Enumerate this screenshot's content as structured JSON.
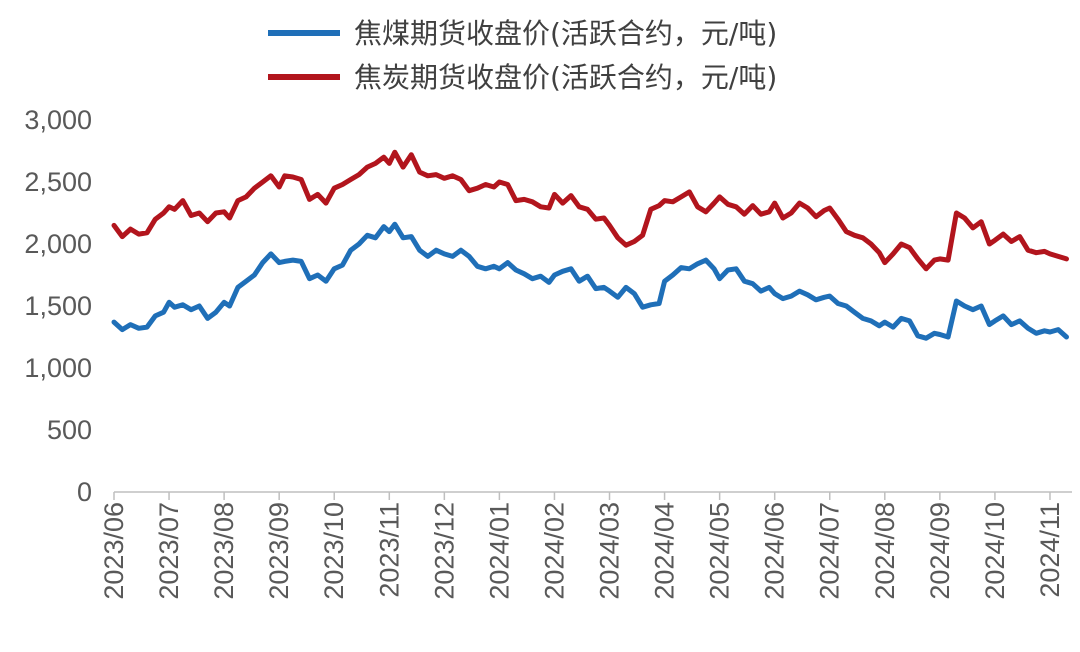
{
  "chart_data": {
    "type": "line",
    "title": "",
    "xlabel": "",
    "ylabel": "",
    "ylim": [
      0,
      3000
    ],
    "yticks": [
      0,
      500,
      1000,
      1500,
      2000,
      2500,
      3000
    ],
    "ytick_labels": [
      "0",
      "500",
      "1,000",
      "1,500",
      "2,000",
      "2,500",
      "3,000"
    ],
    "xlim": [
      0,
      17.4
    ],
    "categories": [
      "2023/06",
      "2023/07",
      "2023/08",
      "2023/09",
      "2023/10",
      "2023/11",
      "2023/12",
      "2024/01",
      "2024/02",
      "2024/03",
      "2024/04",
      "2024/05",
      "2024/06",
      "2024/07",
      "2024/08",
      "2024/09",
      "2024/10",
      "2024/11"
    ],
    "legend_position": "top",
    "grid": false,
    "series": [
      {
        "name": "焦煤期货收盘价(活跃合约，元/吨)",
        "color": "#1f6fb8",
        "x": [
          0,
          0.15,
          0.3,
          0.45,
          0.6,
          0.75,
          0.9,
          1.0,
          1.1,
          1.25,
          1.4,
          1.55,
          1.7,
          1.85,
          2.0,
          2.1,
          2.25,
          2.4,
          2.55,
          2.7,
          2.85,
          3.0,
          3.1,
          3.25,
          3.4,
          3.55,
          3.7,
          3.85,
          4.0,
          4.15,
          4.3,
          4.45,
          4.6,
          4.75,
          4.9,
          5.0,
          5.1,
          5.25,
          5.4,
          5.55,
          5.7,
          5.85,
          6.0,
          6.15,
          6.3,
          6.45,
          6.6,
          6.75,
          6.9,
          7.0,
          7.15,
          7.3,
          7.45,
          7.6,
          7.75,
          7.9,
          8.0,
          8.15,
          8.3,
          8.45,
          8.6,
          8.75,
          8.9,
          9.0,
          9.15,
          9.3,
          9.45,
          9.6,
          9.75,
          9.9,
          10.0,
          10.15,
          10.3,
          10.45,
          10.6,
          10.75,
          10.9,
          11.0,
          11.15,
          11.3,
          11.45,
          11.6,
          11.75,
          11.9,
          12.0,
          12.15,
          12.3,
          12.45,
          12.6,
          12.75,
          12.9,
          13.0,
          13.15,
          13.3,
          13.45,
          13.6,
          13.75,
          13.9,
          14.0,
          14.15,
          14.3,
          14.45,
          14.6,
          14.75,
          14.9,
          15.0,
          15.15,
          15.3,
          15.45,
          15.6,
          15.75,
          15.9,
          16.0,
          16.15,
          16.3,
          16.45,
          16.6,
          16.75,
          16.9,
          17.0,
          17.15,
          17.3
        ],
        "values": [
          1370,
          1310,
          1350,
          1320,
          1330,
          1420,
          1450,
          1530,
          1490,
          1510,
          1470,
          1500,
          1400,
          1450,
          1530,
          1500,
          1650,
          1700,
          1750,
          1850,
          1920,
          1850,
          1860,
          1870,
          1860,
          1720,
          1750,
          1700,
          1800,
          1830,
          1950,
          2000,
          2070,
          2050,
          2140,
          2100,
          2160,
          2050,
          2060,
          1950,
          1900,
          1950,
          1920,
          1900,
          1950,
          1900,
          1820,
          1800,
          1820,
          1800,
          1850,
          1790,
          1760,
          1720,
          1740,
          1690,
          1750,
          1780,
          1800,
          1700,
          1740,
          1640,
          1650,
          1620,
          1570,
          1650,
          1600,
          1490,
          1510,
          1520,
          1700,
          1750,
          1810,
          1800,
          1840,
          1870,
          1800,
          1720,
          1790,
          1800,
          1700,
          1680,
          1620,
          1650,
          1600,
          1560,
          1580,
          1620,
          1590,
          1550,
          1570,
          1580,
          1520,
          1500,
          1450,
          1400,
          1380,
          1340,
          1370,
          1330,
          1400,
          1380,
          1260,
          1240,
          1280,
          1270,
          1250,
          1540,
          1500,
          1470,
          1500,
          1350,
          1380,
          1420,
          1350,
          1380,
          1320,
          1280,
          1300,
          1290,
          1310,
          1250
        ]
      },
      {
        "name": "焦炭期货收盘价(活跃合约，元/吨)",
        "color": "#b2151d",
        "x": [
          0,
          0.15,
          0.3,
          0.45,
          0.6,
          0.75,
          0.9,
          1.0,
          1.1,
          1.25,
          1.4,
          1.55,
          1.7,
          1.85,
          2.0,
          2.1,
          2.25,
          2.4,
          2.55,
          2.7,
          2.85,
          3.0,
          3.1,
          3.25,
          3.4,
          3.55,
          3.7,
          3.85,
          4.0,
          4.15,
          4.3,
          4.45,
          4.6,
          4.75,
          4.9,
          5.0,
          5.1,
          5.25,
          5.4,
          5.55,
          5.7,
          5.85,
          6.0,
          6.15,
          6.3,
          6.45,
          6.6,
          6.75,
          6.9,
          7.0,
          7.15,
          7.3,
          7.45,
          7.6,
          7.75,
          7.9,
          8.0,
          8.15,
          8.3,
          8.45,
          8.6,
          8.75,
          8.9,
          9.0,
          9.15,
          9.3,
          9.45,
          9.6,
          9.75,
          9.9,
          10.0,
          10.15,
          10.3,
          10.45,
          10.6,
          10.75,
          10.9,
          11.0,
          11.15,
          11.3,
          11.45,
          11.6,
          11.75,
          11.9,
          12.0,
          12.15,
          12.3,
          12.45,
          12.6,
          12.75,
          12.9,
          13.0,
          13.15,
          13.3,
          13.45,
          13.6,
          13.75,
          13.9,
          14.0,
          14.15,
          14.3,
          14.45,
          14.6,
          14.75,
          14.9,
          15.0,
          15.15,
          15.3,
          15.45,
          15.6,
          15.75,
          15.9,
          16.0,
          16.15,
          16.3,
          16.45,
          16.6,
          16.75,
          16.9,
          17.0,
          17.15,
          17.3
        ],
        "values": [
          2150,
          2060,
          2120,
          2080,
          2090,
          2200,
          2250,
          2300,
          2280,
          2350,
          2230,
          2250,
          2180,
          2250,
          2260,
          2210,
          2350,
          2380,
          2450,
          2500,
          2550,
          2460,
          2550,
          2540,
          2520,
          2360,
          2400,
          2330,
          2450,
          2480,
          2520,
          2560,
          2620,
          2650,
          2700,
          2650,
          2740,
          2620,
          2720,
          2580,
          2550,
          2560,
          2530,
          2550,
          2520,
          2430,
          2450,
          2480,
          2460,
          2500,
          2480,
          2350,
          2360,
          2340,
          2300,
          2290,
          2400,
          2330,
          2390,
          2300,
          2280,
          2200,
          2210,
          2150,
          2050,
          1990,
          2020,
          2070,
          2280,
          2310,
          2350,
          2340,
          2380,
          2420,
          2300,
          2260,
          2330,
          2380,
          2320,
          2300,
          2240,
          2310,
          2240,
          2260,
          2330,
          2210,
          2250,
          2330,
          2290,
          2220,
          2270,
          2290,
          2200,
          2100,
          2070,
          2050,
          2000,
          1930,
          1850,
          1920,
          2000,
          1970,
          1880,
          1800,
          1870,
          1880,
          1870,
          2250,
          2210,
          2130,
          2180,
          2000,
          2030,
          2080,
          2020,
          2060,
          1950,
          1930,
          1940,
          1920,
          1900,
          1880
        ]
      }
    ]
  }
}
